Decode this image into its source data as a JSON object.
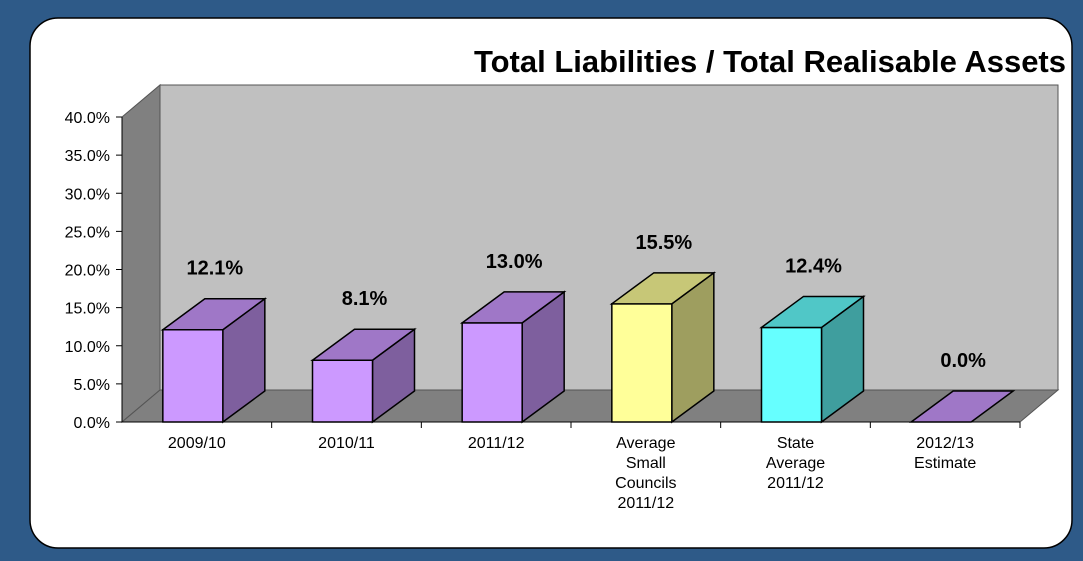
{
  "chart_data": {
    "type": "bar3d",
    "title": "Total Liabilities / Total Realisable Assets",
    "categories": [
      "2009/10",
      "2010/11",
      "2011/12",
      "Average\nSmall\nCouncils\n2011/12",
      "State\nAverage\n2011/12",
      "2012/13\nEstimate"
    ],
    "values": [
      12.1,
      8.1,
      13.0,
      15.5,
      12.4,
      0.0
    ],
    "value_labels": [
      "12.1%",
      "8.1%",
      "13.0%",
      "15.5%",
      "12.4%",
      "0.0%"
    ],
    "colors": [
      "#cc99ff",
      "#cc99ff",
      "#cc99ff",
      "#ffff99",
      "#66ffff",
      "#cc99ff"
    ],
    "ylim": [
      0,
      40
    ],
    "yticks": [
      {
        "value": 0,
        "label": "0.0%"
      },
      {
        "value": 5,
        "label": "5.0%"
      },
      {
        "value": 10,
        "label": "10.0%"
      },
      {
        "value": 15,
        "label": "15.0%"
      },
      {
        "value": 20,
        "label": "20.0%"
      },
      {
        "value": 25,
        "label": "25.0%"
      },
      {
        "value": 30,
        "label": "30.0%"
      },
      {
        "value": 35,
        "label": "35.0%"
      },
      {
        "value": 40,
        "label": "40.0%"
      }
    ]
  }
}
